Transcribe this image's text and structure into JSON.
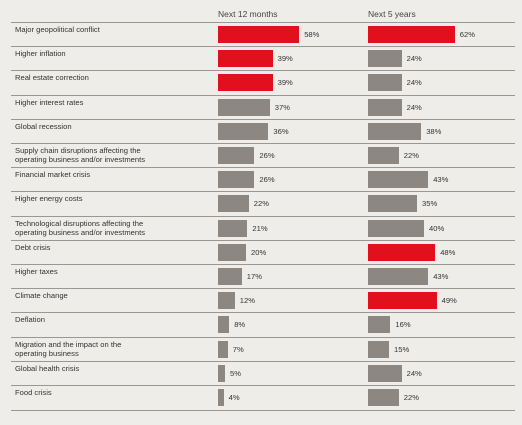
{
  "chart_data": {
    "type": "bar",
    "orientation": "horizontal",
    "categories": [
      "Major geopolitical conflict",
      "Higher inflation",
      "Real estate correction",
      "Higher interest rates",
      "Global recession",
      "Supply chain disruptions affecting the\noperating business and/or investments",
      "Financial market crisis",
      "Higher energy costs",
      "Technological disruptions affecting the\noperating business and/or investments",
      "Debt crisis",
      "Higher taxes",
      "Climate change",
      "Deflation",
      "Migration and the impact on the\noperating business",
      "Global health crisis",
      "Food crisis"
    ],
    "series": [
      {
        "name": "Next 12 months",
        "values": [
          58,
          39,
          39,
          37,
          36,
          26,
          26,
          22,
          21,
          20,
          17,
          12,
          8,
          7,
          5,
          4
        ],
        "value_labels": [
          "58%",
          "39%",
          "39%",
          "37%",
          "36%",
          "26%",
          "26%",
          "22%",
          "21%",
          "20%",
          "17%",
          "12%",
          "8%",
          "7%",
          "5%",
          "4%"
        ],
        "highlighted": [
          true,
          true,
          true,
          false,
          false,
          false,
          false,
          false,
          false,
          false,
          false,
          false,
          false,
          false,
          false,
          false
        ]
      },
      {
        "name": "Next 5 years",
        "values": [
          62,
          24,
          24,
          24,
          38,
          22,
          43,
          35,
          40,
          48,
          43,
          49,
          16,
          15,
          24,
          22
        ],
        "value_labels": [
          "62%",
          "24%",
          "24%",
          "24%",
          "38%",
          "22%",
          "43%",
          "35%",
          "40%",
          "48%",
          "43%",
          "49%",
          "16%",
          "15%",
          "24%",
          "22%"
        ],
        "highlighted": [
          true,
          false,
          false,
          false,
          false,
          false,
          false,
          false,
          false,
          true,
          false,
          true,
          false,
          false,
          false,
          false
        ]
      }
    ],
    "highlight_color": "#e2101d",
    "bar_color": "#8d8782",
    "xlim": [
      0,
      100
    ],
    "grid": false,
    "legend": "none"
  }
}
